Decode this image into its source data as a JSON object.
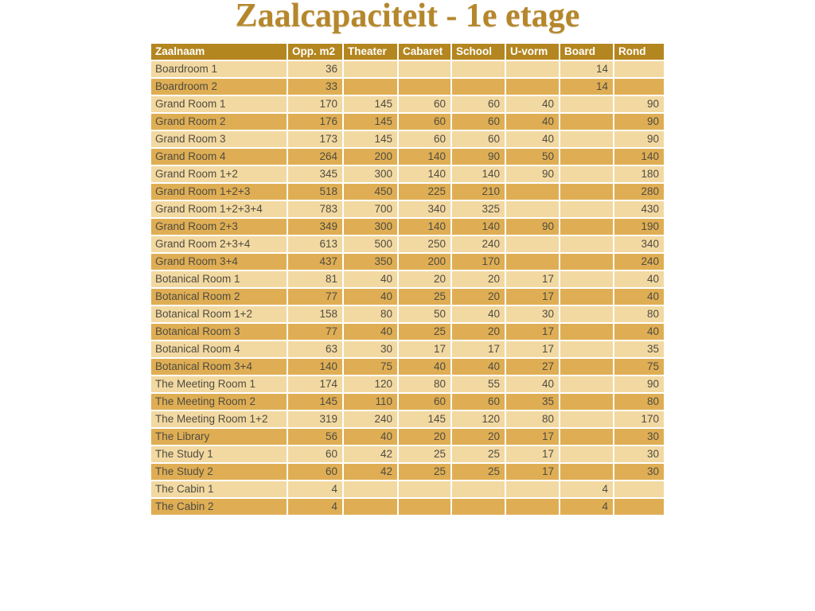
{
  "title": "Zaalcapaciteit - 1e etage",
  "colors": {
    "title": "#b5872b",
    "header_bg": "#b4861f",
    "header_text": "#ffffff",
    "row_light": "#f2d9a2",
    "row_dark": "#dfae54",
    "cell_text": "#504c41"
  },
  "table": {
    "columns": [
      "Zaalnaam",
      "Opp. m2",
      "Theater",
      "Cabaret",
      "School",
      "U-vorm",
      "Board",
      "Rond"
    ],
    "rows": [
      [
        "Boardroom 1",
        "36",
        "",
        "",
        "",
        "",
        "14",
        ""
      ],
      [
        "Boardroom 2",
        "33",
        "",
        "",
        "",
        "",
        "14",
        ""
      ],
      [
        "Grand Room 1",
        "170",
        "145",
        "60",
        "60",
        "40",
        "",
        "90"
      ],
      [
        "Grand Room 2",
        "176",
        "145",
        "60",
        "60",
        "40",
        "",
        "90"
      ],
      [
        "Grand Room 3",
        "173",
        "145",
        "60",
        "60",
        "40",
        "",
        "90"
      ],
      [
        "Grand Room 4",
        "264",
        "200",
        "140",
        "90",
        "50",
        "",
        "140"
      ],
      [
        "Grand Room 1+2",
        "345",
        "300",
        "140",
        "140",
        "90",
        "",
        "180"
      ],
      [
        "Grand Room 1+2+3",
        "518",
        "450",
        "225",
        "210",
        "",
        "",
        "280"
      ],
      [
        "Grand Room 1+2+3+4",
        "783",
        "700",
        "340",
        "325",
        "",
        "",
        "430"
      ],
      [
        "Grand Room 2+3",
        "349",
        "300",
        "140",
        "140",
        "90",
        "",
        "190"
      ],
      [
        "Grand Room 2+3+4",
        "613",
        "500",
        "250",
        "240",
        "",
        "",
        "340"
      ],
      [
        "Grand Room 3+4",
        "437",
        "350",
        "200",
        "170",
        "",
        "",
        "240"
      ],
      [
        "Botanical Room 1",
        "81",
        "40",
        "20",
        "20",
        "17",
        "",
        "40"
      ],
      [
        "Botanical Room 2",
        "77",
        "40",
        "25",
        "20",
        "17",
        "",
        "40"
      ],
      [
        "Botanical Room 1+2",
        "158",
        "80",
        "50",
        "40",
        "30",
        "",
        "80"
      ],
      [
        "Botanical Room 3",
        "77",
        "40",
        "25",
        "20",
        "17",
        "",
        "40"
      ],
      [
        "Botanical Room 4",
        "63",
        "30",
        "17",
        "17",
        "17",
        "",
        "35"
      ],
      [
        "Botanical Room 3+4",
        "140",
        "75",
        "40",
        "40",
        "27",
        "",
        "75"
      ],
      [
        "The Meeting Room 1",
        "174",
        "120",
        "80",
        "55",
        "40",
        "",
        "90"
      ],
      [
        "The Meeting Room 2",
        "145",
        "110",
        "60",
        "60",
        "35",
        "",
        "80"
      ],
      [
        "The Meeting Room 1+2",
        "319",
        "240",
        "145",
        "120",
        "80",
        "",
        "170"
      ],
      [
        "The Library",
        "56",
        "40",
        "20",
        "20",
        "17",
        "",
        "30"
      ],
      [
        "The Study 1",
        "60",
        "42",
        "25",
        "25",
        "17",
        "",
        "30"
      ],
      [
        "The Study 2",
        "60",
        "42",
        "25",
        "25",
        "17",
        "",
        "30"
      ],
      [
        "The Cabin 1",
        "4",
        "",
        "",
        "",
        "",
        "4",
        ""
      ],
      [
        "The Cabin 2",
        "4",
        "",
        "",
        "",
        "",
        "4",
        ""
      ]
    ]
  }
}
